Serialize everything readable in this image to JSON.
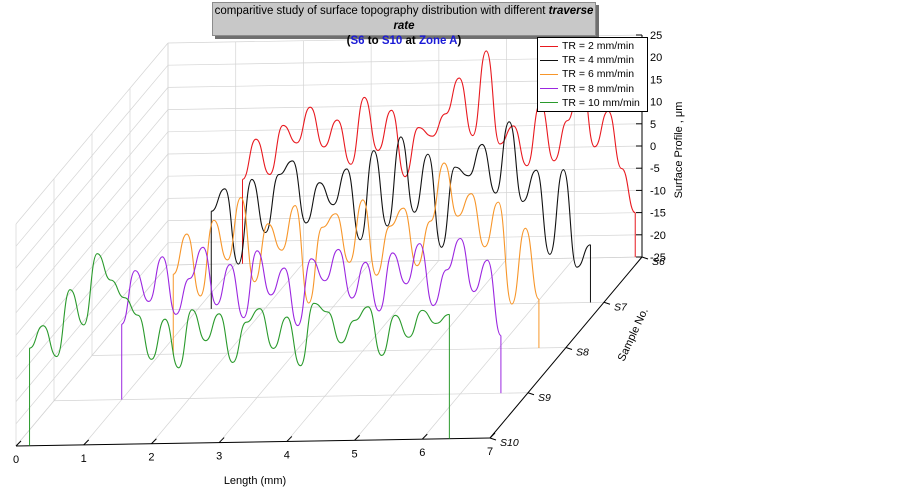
{
  "title": {
    "line1_prefix": "comparitive study of surface topography distribution with different ",
    "line1_emph": "traverse rate",
    "line2_open": "(",
    "line2_s6": "S6",
    "line2_to": " to ",
    "line2_s10": "S10",
    "line2_at": " at ",
    "line2_zone": "Zone A",
    "line2_close": ")"
  },
  "chart_data": {
    "type": "line",
    "projection": "3d-waterfall",
    "xlabel": "Length (mm)",
    "ylabel": "Sample No.",
    "zlabel": "Surface Profile , μm",
    "xlim": [
      0,
      7
    ],
    "zlim": [
      -25,
      25
    ],
    "x_ticks": [
      "0",
      "1",
      "2",
      "3",
      "4",
      "5",
      "6",
      "7"
    ],
    "z_ticks": [
      "25",
      "20",
      "15",
      "10",
      "5",
      "0",
      "-5",
      "-10",
      "-15",
      "-20",
      "-25"
    ],
    "samples": [
      "S6",
      "S7",
      "S8",
      "S9",
      "S10"
    ],
    "series": [
      {
        "name": "TR = 2 mm/min",
        "sample": "S6",
        "color": "#e8191f",
        "x": [
          1.1,
          1.3,
          1.5,
          1.7,
          1.9,
          2.1,
          2.3,
          2.5,
          2.7,
          2.9,
          3.1,
          3.3,
          3.5,
          3.7,
          3.9,
          4.1,
          4.3,
          4.5,
          4.7,
          4.9,
          5.1,
          5.3,
          5.5,
          5.7,
          5.9,
          6.1,
          6.3,
          6.5,
          6.7,
          6.9
        ],
        "z": [
          -6,
          3,
          -5,
          6,
          2,
          10,
          1,
          7,
          -3,
          12,
          0,
          9,
          -6,
          5,
          3,
          8,
          16,
          3,
          22,
          1,
          5,
          -4,
          10,
          -3,
          6,
          16,
          0,
          8,
          -5,
          -15
        ]
      },
      {
        "name": "TR = 4 mm/min",
        "sample": "S7",
        "color": "#111111",
        "x": [
          1.2,
          1.4,
          1.6,
          1.8,
          2.0,
          2.2,
          2.4,
          2.6,
          2.8,
          3.0,
          3.2,
          3.4,
          3.6,
          3.8,
          4.0,
          4.2,
          4.4,
          4.6,
          4.8,
          5.0,
          5.2,
          5.4,
          5.6,
          5.8,
          6.0,
          6.2,
          6.4,
          6.6,
          6.8
        ],
        "z": [
          -3,
          2,
          -15,
          4,
          -8,
          5,
          8,
          -6,
          3,
          -2,
          6,
          -10,
          10,
          -7,
          13,
          -4,
          9,
          -12,
          6,
          4,
          11,
          0,
          16,
          -2,
          5,
          -14,
          5,
          -17,
          -12
        ]
      },
      {
        "name": "TR = 6 mm/min",
        "sample": "S8",
        "color": "#f7962a",
        "x": [
          1.2,
          1.4,
          1.6,
          1.8,
          2.0,
          2.2,
          2.4,
          2.6,
          2.8,
          3.0,
          3.2,
          3.4,
          3.6,
          3.8,
          4.0,
          4.2,
          4.4,
          4.6,
          4.8,
          5.0,
          5.2,
          5.4,
          5.6,
          5.8,
          6.0,
          6.2,
          6.4,
          6.6
        ],
        "z": [
          -7,
          2,
          -12,
          5,
          -4,
          10,
          -9,
          4,
          -2,
          8,
          -14,
          3,
          6,
          -5,
          9,
          -8,
          3,
          7,
          -6,
          4,
          17,
          5,
          10,
          -2,
          8,
          -15,
          2,
          -14
        ]
      },
      {
        "name": "TR = 8 mm/min",
        "sample": "S9",
        "color": "#9b27e0",
        "x": [
          1.0,
          1.2,
          1.4,
          1.6,
          1.8,
          2.0,
          2.2,
          2.4,
          2.6,
          2.8,
          3.0,
          3.2,
          3.4,
          3.6,
          3.8,
          4.0,
          4.2,
          4.4,
          4.6,
          4.8,
          5.0,
          5.2,
          5.4,
          5.6,
          5.8,
          6.0,
          6.2,
          6.4,
          6.6
        ],
        "z": [
          -8,
          4,
          -3,
          7,
          -6,
          2,
          9,
          -4,
          5,
          -7,
          8,
          -2,
          4,
          -9,
          6,
          1,
          8,
          -3,
          5,
          -6,
          7,
          0,
          9,
          -5,
          3,
          10,
          -2,
          5,
          -12
        ]
      },
      {
        "name": "TR = 10 mm/min",
        "sample": "S10",
        "color": "#2a9a2c",
        "x": [
          0.2,
          0.4,
          0.6,
          0.8,
          1.0,
          1.2,
          1.4,
          1.6,
          1.8,
          2.0,
          2.2,
          2.4,
          2.6,
          2.8,
          3.0,
          3.2,
          3.4,
          3.6,
          3.8,
          4.0,
          4.2,
          4.4,
          4.6,
          4.8,
          5.0,
          5.2,
          5.4,
          5.6,
          5.8,
          6.0,
          6.2,
          6.4
        ],
        "z": [
          -3,
          2,
          -5,
          10,
          2,
          18,
          12,
          8,
          4,
          -6,
          3,
          -8,
          5,
          -2,
          4,
          -7,
          2,
          5,
          -4,
          3,
          -8,
          6,
          4,
          -3,
          2,
          5,
          -6,
          3,
          -2,
          4,
          1,
          3
        ]
      }
    ]
  },
  "colors": {
    "title_bg": "#c8c8c8",
    "accent_blue": "#1a1ad6"
  }
}
